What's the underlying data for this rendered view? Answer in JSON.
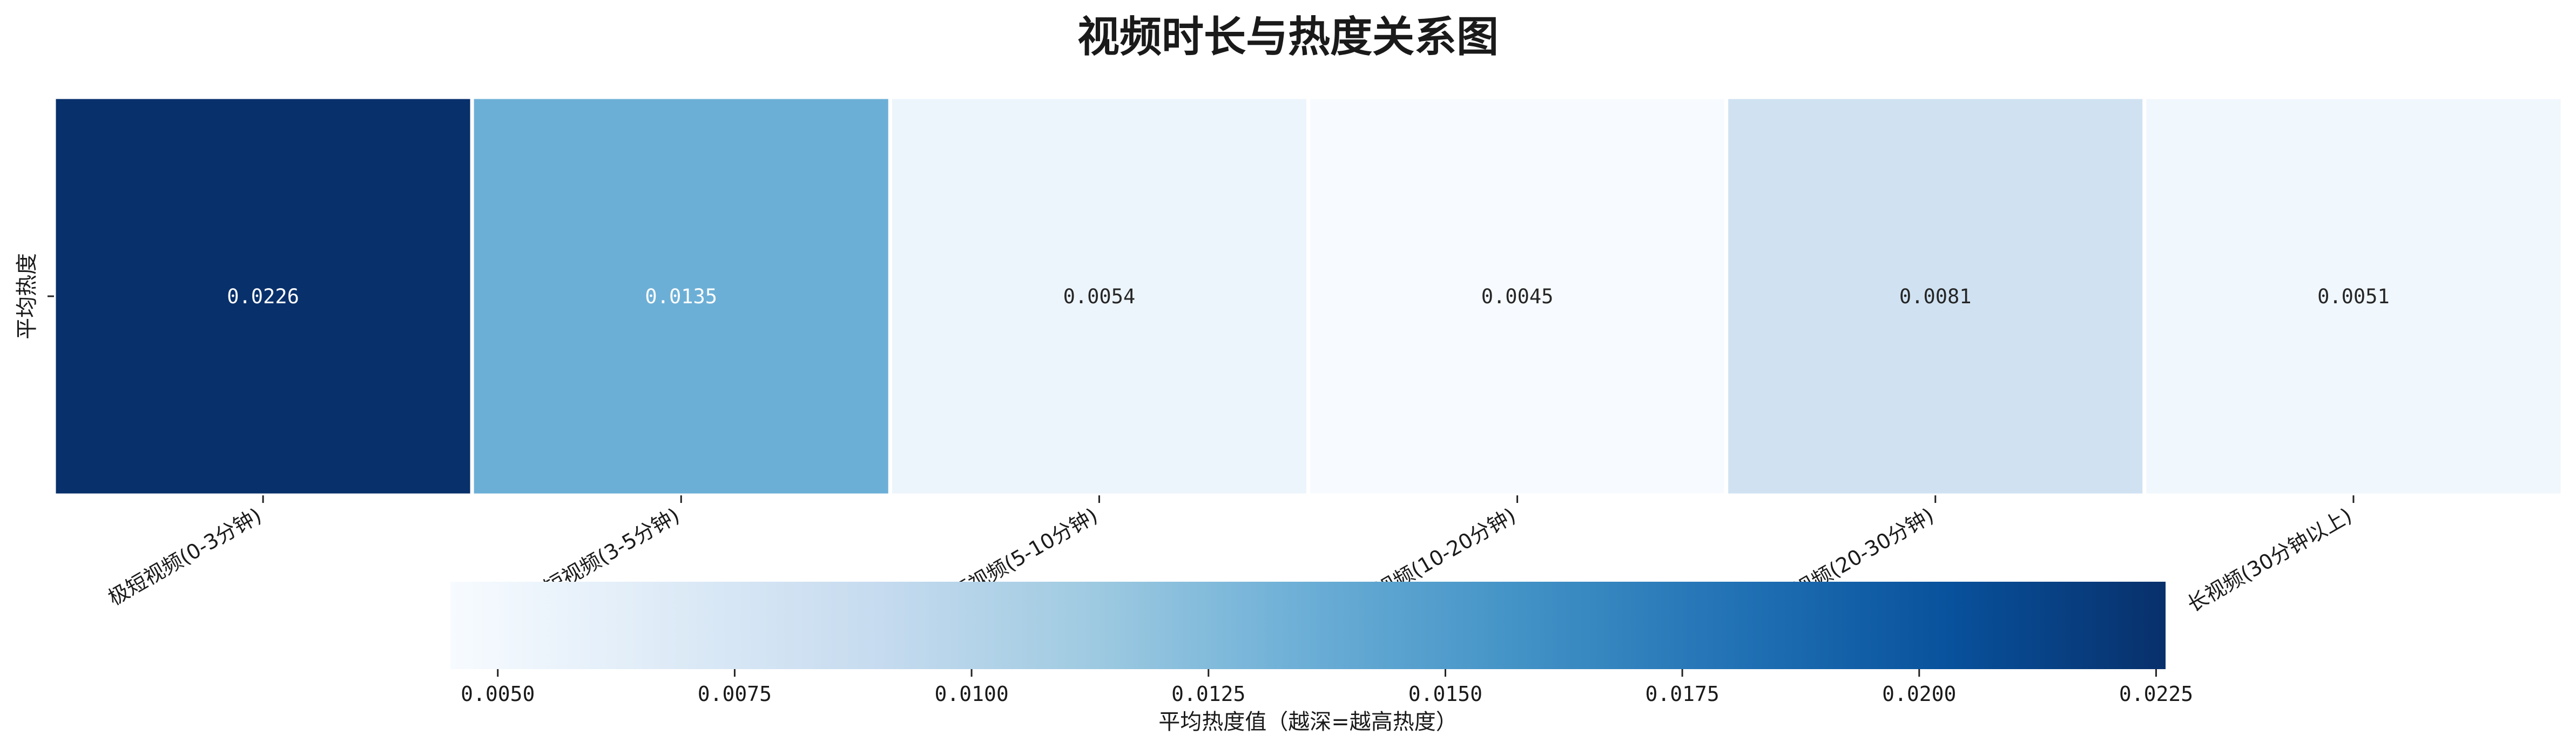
{
  "chart_data": {
    "type": "heatmap",
    "title": "视频时长与热度关系图",
    "ylabel": "平均热度",
    "row_label": "",
    "categories": [
      "极短视频(0-3分钟)",
      "短视频(3-5分钟)",
      "中短视频(5-10分钟)",
      "中长视频(10-20分钟)",
      "长视频(20-30分钟)",
      "长视频(30分钟以上)"
    ],
    "values": [
      0.0226,
      0.0135,
      0.0054,
      0.0045,
      0.0081,
      0.0051
    ],
    "value_labels": [
      "0.0226",
      "0.0135",
      "0.0054",
      "0.0045",
      "0.0081",
      "0.0051"
    ],
    "colormap": "Blues",
    "colorbar": {
      "label": "平均热度值（越深=越高热度）",
      "orientation": "horizontal",
      "range": [
        0.0045,
        0.0226
      ],
      "ticks": [
        0.005,
        0.0075,
        0.01,
        0.0125,
        0.015,
        0.0175,
        0.02,
        0.0225
      ],
      "tick_labels": [
        "0.0050",
        "0.0075",
        "0.0100",
        "0.0125",
        "0.0150",
        "0.0175",
        "0.0200",
        "0.0225"
      ]
    }
  }
}
